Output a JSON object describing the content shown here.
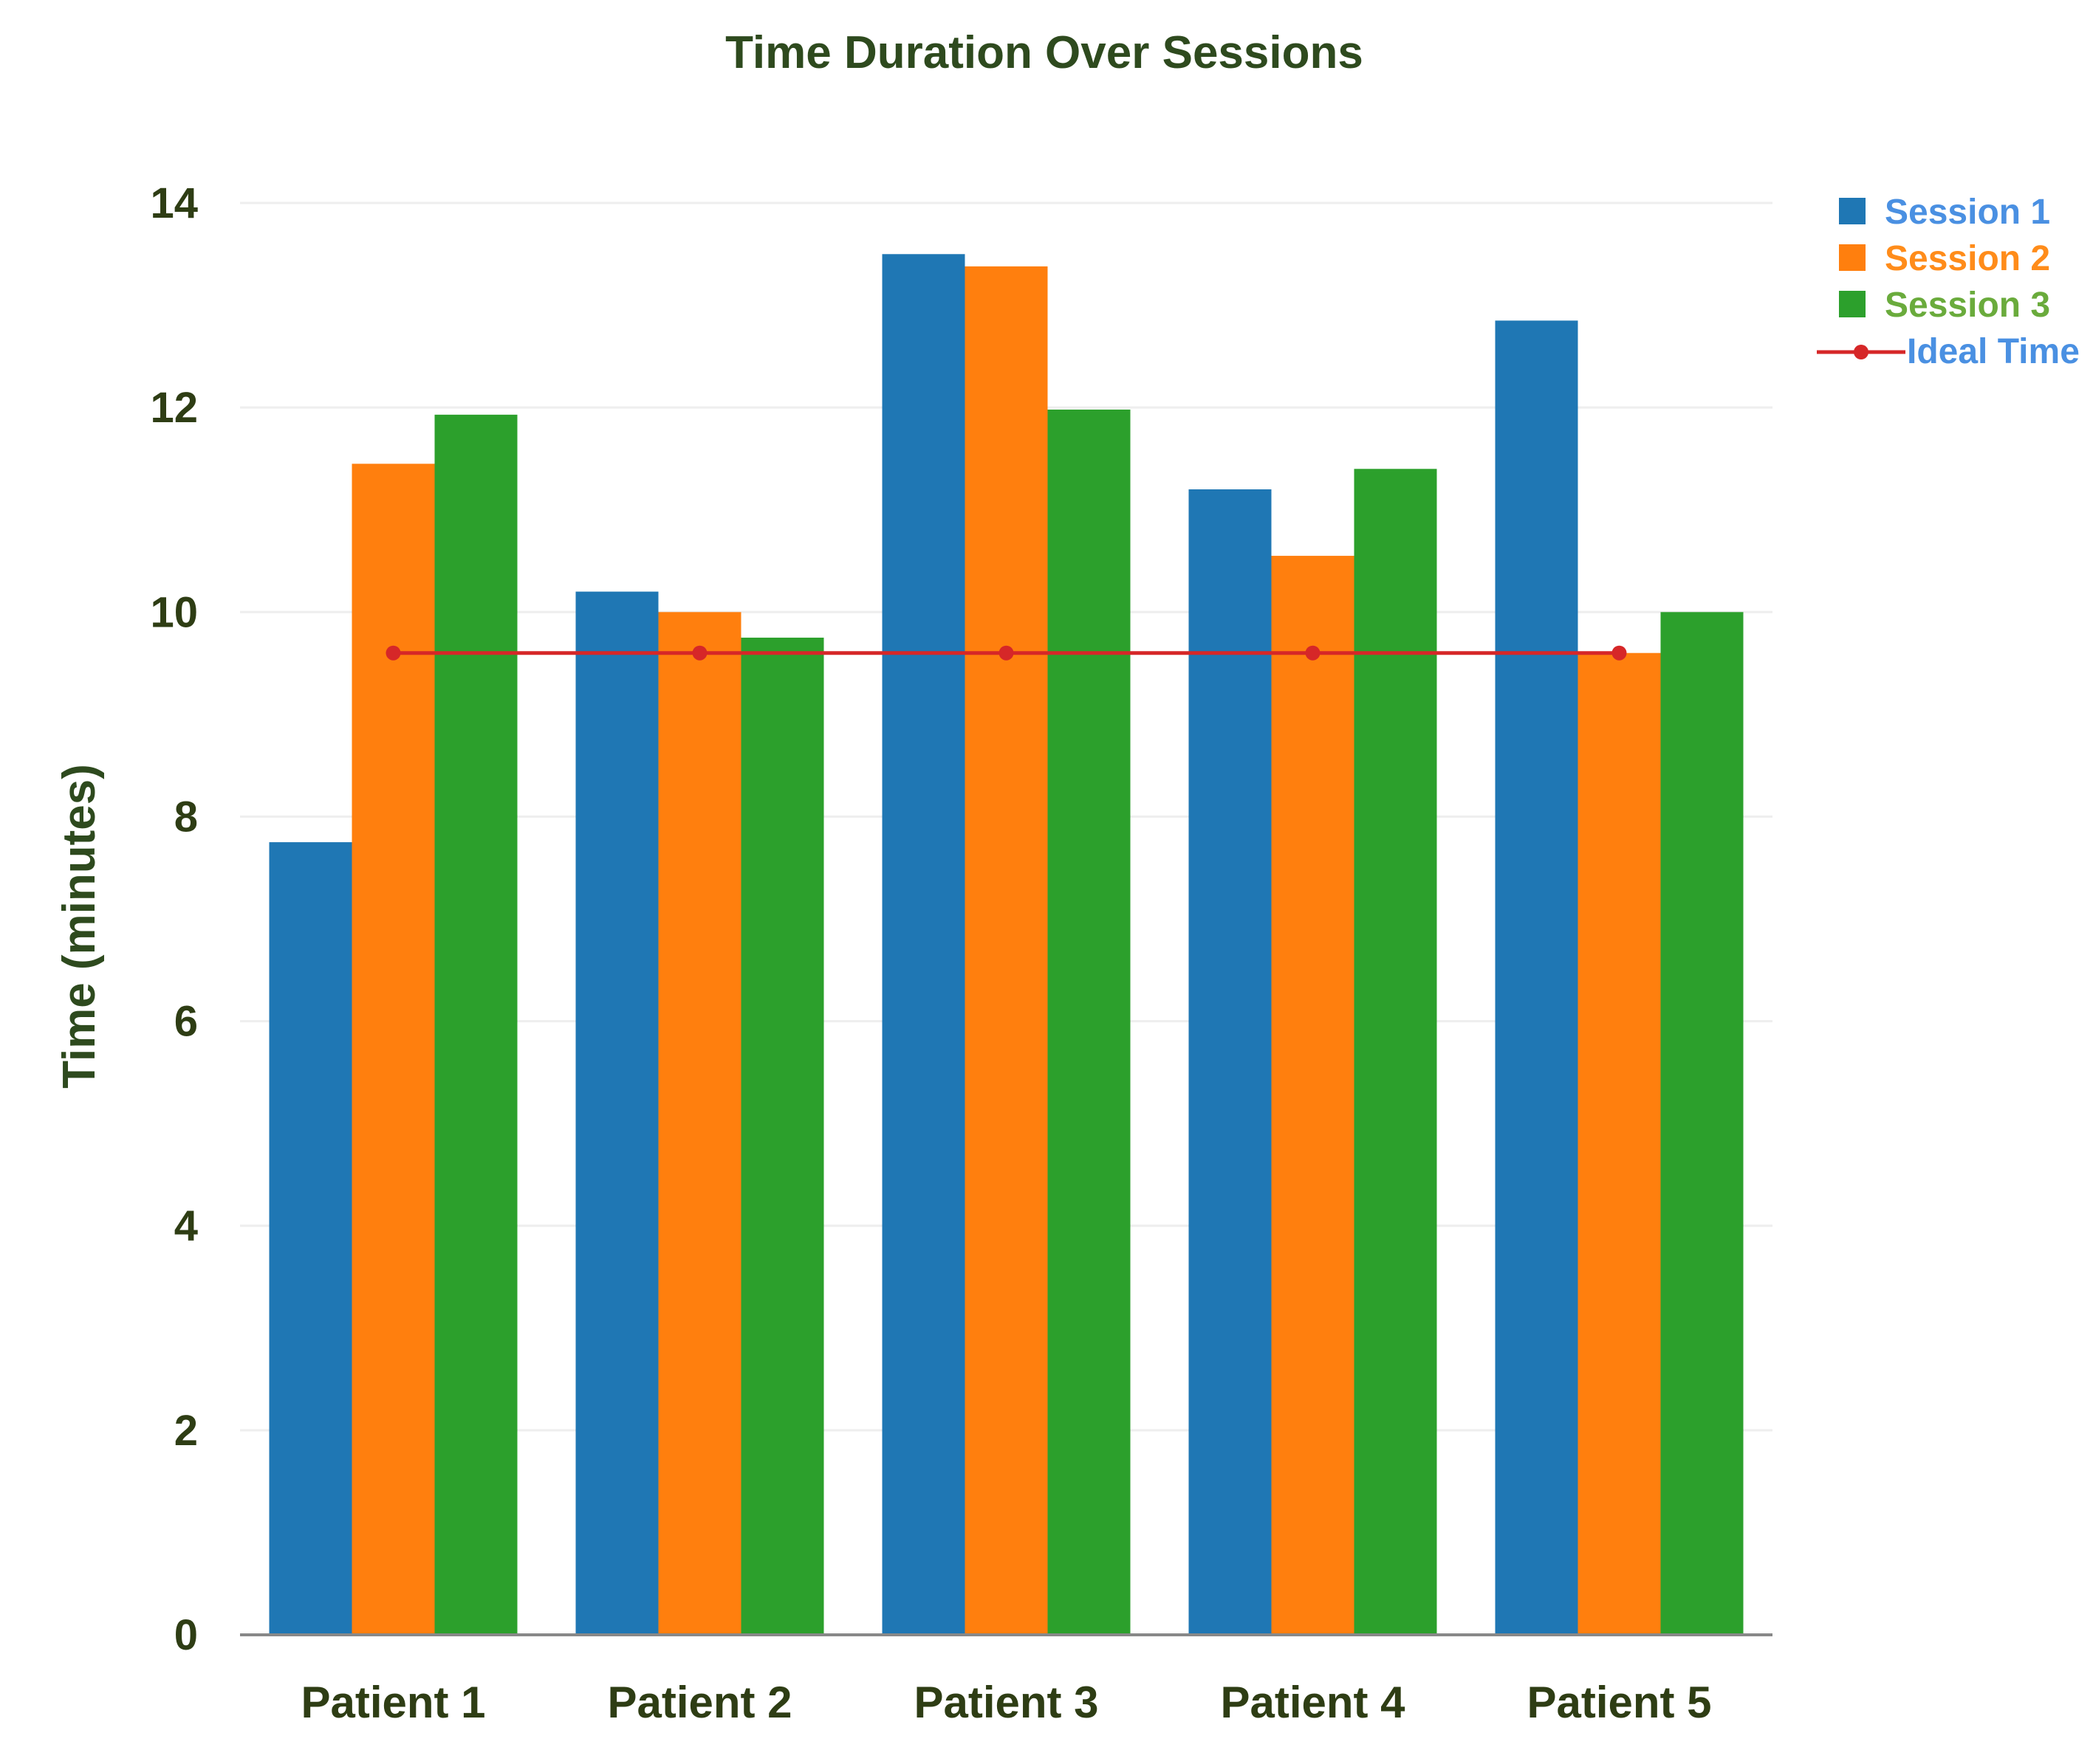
{
  "colors": {
    "title": "#2e4a1e",
    "axis_text": "#2e3d14",
    "grid": "#eeeeee",
    "axis_line": "#888888",
    "session_1": "#1f77b4",
    "session_2": "#ff7f0e",
    "session_3": "#2ca02c",
    "ideal": "#d62728",
    "legend_session_1_text": "#4a90e2",
    "legend_session_2_text": "#ff8c1a",
    "legend_session_3_text": "#6aab3c",
    "legend_ideal_text": "#4a90e2"
  },
  "chart_data": {
    "type": "bar",
    "title": "Time Duration Over Sessions",
    "xlabel": "",
    "ylabel": "Time (minutes)",
    "ylim": [
      0,
      14
    ],
    "yticks": [
      0,
      2,
      4,
      6,
      8,
      10,
      12,
      14
    ],
    "grid": true,
    "legend_position": "top-right",
    "categories": [
      "Patient 1",
      "Patient 2",
      "Patient 3",
      "Patient 4",
      "Patient 5"
    ],
    "series": [
      {
        "name": "Session 1",
        "type": "bar",
        "values": [
          7.75,
          10.2,
          13.5,
          11.2,
          12.85
        ]
      },
      {
        "name": "Session 2",
        "type": "bar",
        "values": [
          11.45,
          10.0,
          13.38,
          10.55,
          9.6
        ]
      },
      {
        "name": "Session 3",
        "type": "bar",
        "values": [
          11.93,
          9.75,
          11.98,
          11.4,
          10.0
        ]
      },
      {
        "name": "Ideal Time",
        "type": "line",
        "values": [
          9.6,
          9.6,
          9.6,
          9.6,
          9.6
        ]
      }
    ]
  }
}
